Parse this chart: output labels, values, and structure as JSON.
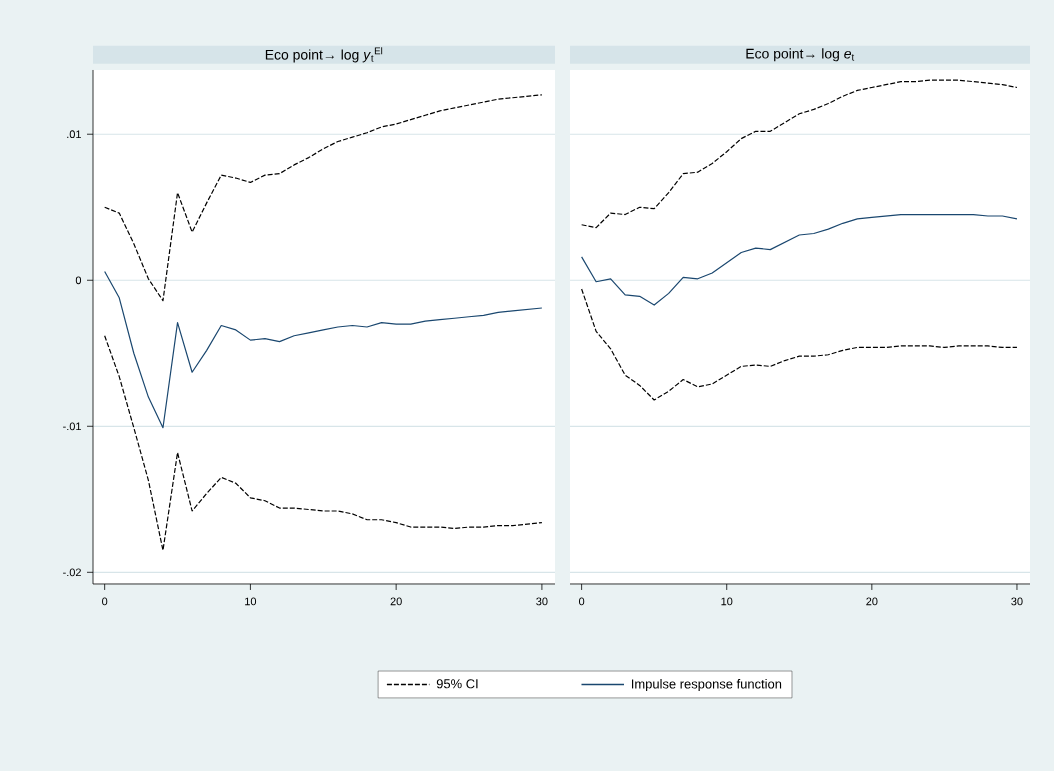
{
  "chart_data": [
    {
      "type": "line",
      "title": "Eco point→ log *y*$_{t}$$^{El}$",
      "x": [
        0,
        1,
        2,
        3,
        4,
        5,
        6,
        7,
        8,
        9,
        10,
        11,
        12,
        13,
        14,
        15,
        16,
        17,
        18,
        19,
        20,
        21,
        22,
        23,
        24,
        25,
        26,
        27,
        28,
        29,
        30
      ],
      "series": [
        {
          "name": "95% CI",
          "color": "#000000",
          "line_style": "dashed",
          "values": [
            0.005,
            0.0046,
            0.0025,
            0.0001,
            -0.0014,
            0.006,
            0.0033,
            0.0053,
            0.0072,
            0.007,
            0.0067,
            0.0072,
            0.0073,
            0.0079,
            0.0084,
            0.009,
            0.0095,
            0.0098,
            0.0101,
            0.0105,
            0.0107,
            0.011,
            0.0113,
            0.0116,
            0.0118,
            0.012,
            0.0122,
            0.0124,
            0.0125,
            0.0126,
            0.0127
          ]
        },
        {
          "name": "Impulse response function",
          "color": "#1a476f",
          "line_style": "solid",
          "values": [
            0.0006,
            -0.0012,
            -0.005,
            -0.008,
            -0.0101,
            -0.0029,
            -0.0063,
            -0.0048,
            -0.0031,
            -0.0034,
            -0.0041,
            -0.004,
            -0.0042,
            -0.0038,
            -0.0036,
            -0.0034,
            -0.0032,
            -0.0031,
            -0.0032,
            -0.0029,
            -0.003,
            -0.003,
            -0.0028,
            -0.0027,
            -0.0026,
            -0.0025,
            -0.0024,
            -0.0022,
            -0.0021,
            -0.002,
            -0.0019
          ]
        },
        {
          "color": "#000000",
          "line_style": "dashed",
          "values": [
            -0.0038,
            -0.0066,
            -0.0101,
            -0.0137,
            -0.0185,
            -0.0118,
            -0.0158,
            -0.0146,
            -0.0135,
            -0.0139,
            -0.0149,
            -0.0151,
            -0.0156,
            -0.0156,
            -0.0157,
            -0.0158,
            -0.0158,
            -0.016,
            -0.0164,
            -0.0164,
            -0.0166,
            -0.0169,
            -0.0169,
            -0.0169,
            -0.017,
            -0.0169,
            -0.0169,
            -0.0168,
            -0.0168,
            -0.0167,
            -0.0166
          ]
        }
      ],
      "xlim": [
        -0.8,
        30.9
      ],
      "xticks": [
        0,
        10,
        20,
        30
      ],
      "ylim": [
        -0.0208,
        0.0144
      ],
      "yticks": [
        {
          "value": -0.02,
          "label": "-.02"
        },
        {
          "value": -0.01,
          "label": "-.01"
        },
        {
          "value": 0,
          "label": "0"
        },
        {
          "value": 0.01,
          "label": ".01"
        }
      ],
      "grid": "y",
      "legend": "bottom"
    },
    {
      "type": "line",
      "title": "Eco point→ log *e*$_{t}$",
      "x": [
        0,
        1,
        2,
        3,
        4,
        5,
        6,
        7,
        8,
        9,
        10,
        11,
        12,
        13,
        14,
        15,
        16,
        17,
        18,
        19,
        20,
        21,
        22,
        23,
        24,
        25,
        26,
        27,
        28,
        29,
        30
      ],
      "series": [
        {
          "color": "#000000",
          "line_style": "dashed",
          "values": [
            0.0038,
            0.0036,
            0.0046,
            0.0045,
            0.005,
            0.0049,
            0.006,
            0.0073,
            0.0074,
            0.008,
            0.0088,
            0.0097,
            0.0102,
            0.0102,
            0.0108,
            0.0114,
            0.0117,
            0.0121,
            0.0126,
            0.013,
            0.0132,
            0.0134,
            0.0136,
            0.0136,
            0.0137,
            0.0137,
            0.0137,
            0.0136,
            0.0135,
            0.0134,
            0.0132
          ]
        },
        {
          "color": "#1a476f",
          "line_style": "solid",
          "values": [
            0.0016,
            -0.0001,
            0.0001,
            -0.001,
            -0.0011,
            -0.0017,
            -0.0009,
            0.0002,
            0.0001,
            0.0005,
            0.0012,
            0.0019,
            0.0022,
            0.0021,
            0.0026,
            0.0031,
            0.0032,
            0.0035,
            0.0039,
            0.0042,
            0.0043,
            0.0044,
            0.0045,
            0.0045,
            0.0045,
            0.0045,
            0.0045,
            0.0045,
            0.0044,
            0.0044,
            0.0042
          ]
        },
        {
          "color": "#000000",
          "line_style": "dashed",
          "values": [
            -0.0006,
            -0.0035,
            -0.0047,
            -0.0065,
            -0.0072,
            -0.0082,
            -0.0076,
            -0.0068,
            -0.0073,
            -0.0071,
            -0.0065,
            -0.0059,
            -0.0058,
            -0.0059,
            -0.0055,
            -0.0052,
            -0.0052,
            -0.0051,
            -0.0048,
            -0.0046,
            -0.0046,
            -0.0046,
            -0.0045,
            -0.0045,
            -0.0045,
            -0.0046,
            -0.0045,
            -0.0045,
            -0.0045,
            -0.0046,
            -0.0046
          ]
        }
      ],
      "xlim": [
        -0.8,
        30.9
      ],
      "xticks": [
        0,
        10,
        20,
        30
      ],
      "ylim": [
        -0.0208,
        0.0144
      ],
      "yticks": [
        -0.02,
        -0.01,
        0,
        0.01
      ],
      "grid": "y",
      "tick_labels": "x"
    }
  ]
}
